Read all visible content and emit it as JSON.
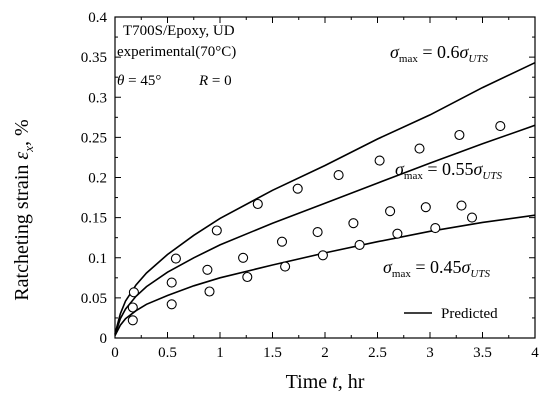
{
  "chart_data": {
    "type": "line",
    "title": "",
    "xlabel": "Time",
    "xlabel_var": "t",
    "xlabel_unit": ", hr",
    "ylabel": "Ratcheting strain",
    "ylabel_var": "ε",
    "ylabel_sub": "x",
    "ylabel_unit": ", %",
    "xlim": [
      0,
      4
    ],
    "ylim": [
      0,
      0.4
    ],
    "xticks": [
      "0",
      "0.5",
      "1",
      "1.5",
      "2",
      "2.5",
      "3",
      "3.5",
      "4"
    ],
    "yticks": [
      "0",
      "0.05",
      "0.1",
      "0.15",
      "0.2",
      "0.25",
      "0.3",
      "0.35",
      "0.4"
    ],
    "grid": false,
    "annotations": {
      "material": "T700S/Epoxy, UD",
      "condition": "experimental(70°C)",
      "theta_label": "θ = 45°",
      "r_label": "R = 0"
    },
    "series": [
      {
        "label_sym": "σ",
        "label_sub": "max",
        "label_mid": " = 0.6",
        "label_tail": "σ",
        "label_tail_sub": "UTS",
        "predicted": [
          [
            0,
            0.005
          ],
          [
            0.05,
            0.03
          ],
          [
            0.1,
            0.046
          ],
          [
            0.2,
            0.066
          ],
          [
            0.3,
            0.081
          ],
          [
            0.5,
            0.104
          ],
          [
            0.75,
            0.128
          ],
          [
            1,
            0.149
          ],
          [
            1.5,
            0.184
          ],
          [
            2,
            0.215
          ],
          [
            2.5,
            0.248
          ],
          [
            3,
            0.278
          ],
          [
            3.5,
            0.312
          ],
          [
            4,
            0.343
          ]
        ],
        "experimental": [
          [
            0.18,
            0.057
          ],
          [
            0.58,
            0.099
          ],
          [
            0.97,
            0.134
          ],
          [
            1.36,
            0.167
          ],
          [
            1.74,
            0.186
          ],
          [
            2.13,
            0.203
          ],
          [
            2.52,
            0.221
          ],
          [
            2.9,
            0.236
          ],
          [
            3.28,
            0.253
          ],
          [
            3.67,
            0.264
          ]
        ]
      },
      {
        "label_sym": "σ",
        "label_sub": "max",
        "label_mid": " = 0.55",
        "label_tail": "σ",
        "label_tail_sub": "UTS",
        "predicted": [
          [
            0,
            0.004
          ],
          [
            0.05,
            0.024
          ],
          [
            0.1,
            0.036
          ],
          [
            0.2,
            0.052
          ],
          [
            0.3,
            0.064
          ],
          [
            0.5,
            0.082
          ],
          [
            0.75,
            0.1
          ],
          [
            1,
            0.116
          ],
          [
            1.5,
            0.143
          ],
          [
            2,
            0.168
          ],
          [
            2.5,
            0.193
          ],
          [
            3,
            0.218
          ],
          [
            3.5,
            0.242
          ],
          [
            4,
            0.265
          ]
        ],
        "experimental": [
          [
            0.17,
            0.038
          ],
          [
            0.54,
            0.069
          ],
          [
            0.88,
            0.085
          ],
          [
            1.22,
            0.1
          ],
          [
            1.59,
            0.12
          ],
          [
            1.93,
            0.132
          ],
          [
            2.27,
            0.143
          ],
          [
            2.62,
            0.158
          ],
          [
            2.96,
            0.163
          ],
          [
            3.3,
            0.165
          ],
          [
            3.4,
            0.15
          ]
        ]
      },
      {
        "label_sym": "σ",
        "label_sub": "max",
        "label_mid": " = 0.45",
        "label_tail": "σ",
        "label_tail_sub": "UTS",
        "predicted": [
          [
            0,
            0.003
          ],
          [
            0.05,
            0.016
          ],
          [
            0.1,
            0.024
          ],
          [
            0.2,
            0.034
          ],
          [
            0.3,
            0.042
          ],
          [
            0.5,
            0.053
          ],
          [
            0.75,
            0.065
          ],
          [
            1,
            0.075
          ],
          [
            1.5,
            0.091
          ],
          [
            2,
            0.106
          ],
          [
            2.5,
            0.12
          ],
          [
            3,
            0.133
          ],
          [
            3.5,
            0.144
          ],
          [
            4,
            0.153
          ]
        ],
        "experimental": [
          [
            0.17,
            0.022
          ],
          [
            0.54,
            0.042
          ],
          [
            0.9,
            0.058
          ],
          [
            1.26,
            0.076
          ],
          [
            1.62,
            0.089
          ],
          [
            1.98,
            0.103
          ],
          [
            2.33,
            0.116
          ],
          [
            2.69,
            0.13
          ],
          [
            3.05,
            0.137
          ]
        ]
      }
    ],
    "legend": {
      "line_label": "Predicted",
      "placement": "bottom-right"
    }
  }
}
